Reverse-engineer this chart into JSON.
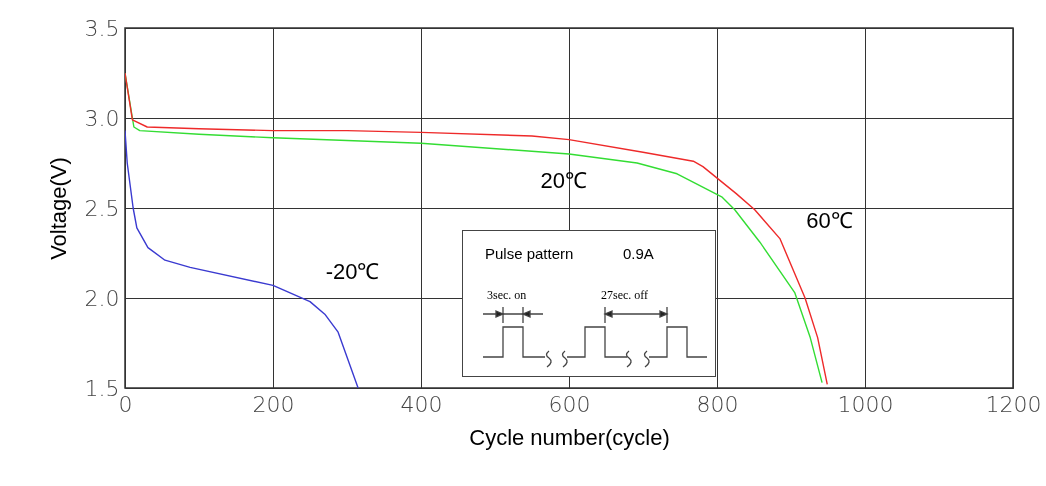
{
  "chart_data": {
    "type": "line",
    "xlabel": "Cycle number(cycle)",
    "ylabel": "Voltage(V)",
    "xlim": [
      0,
      1200
    ],
    "xticks": [
      0,
      200,
      400,
      600,
      800,
      1000,
      1200
    ],
    "ylim": [
      1.5,
      3.5
    ],
    "yticks": [
      1.5,
      {
        "value": 2,
        "label": "2.0"
      },
      2.5,
      {
        "value": 3,
        "label": "3.0"
      },
      3.5
    ],
    "grid": true,
    "series": [
      {
        "color": "#3a3ad0",
        "x": [
          0,
          3,
          11,
          16,
          31,
          54,
          88,
          200,
          250,
          270,
          288,
          315
        ],
        "values": [
          2.93,
          2.75,
          2.5,
          2.39,
          2.28,
          2.21,
          2.17,
          2.07,
          1.98,
          1.91,
          1.81,
          1.5
        ]
      },
      {
        "color": "#33dd33",
        "x": [
          0,
          12,
          20,
          100,
          200,
          400,
          600,
          692,
          746,
          807,
          824,
          858,
          905,
          926,
          942
        ],
        "values": [
          3.25,
          2.95,
          2.93,
          2.91,
          2.89,
          2.86,
          2.8,
          2.75,
          2.69,
          2.56,
          2.49,
          2.31,
          2.03,
          1.78,
          1.53
        ]
      },
      {
        "color": "#ee2a2a",
        "x": [
          0,
          10,
          30,
          100,
          200,
          300,
          400,
          550,
          600,
          700,
          768,
          781,
          826,
          851,
          885,
          919,
          936,
          949
        ],
        "values": [
          3.25,
          2.99,
          2.95,
          2.94,
          2.93,
          2.93,
          2.92,
          2.9,
          2.88,
          2.81,
          2.76,
          2.73,
          2.58,
          2.49,
          2.33,
          2.0,
          1.78,
          1.52
        ]
      }
    ],
    "annotations": [
      {
        "text": "-20℃",
        "x": 255,
        "y": 1.98
      },
      {
        "text": "20℃",
        "x": 692,
        "y": 2.75
      },
      {
        "text": "60℃",
        "x": 899,
        "y": 2.27
      },
      "Pulse pattern",
      "0.9A",
      "3sec. on",
      "27sec. off"
    ]
  }
}
